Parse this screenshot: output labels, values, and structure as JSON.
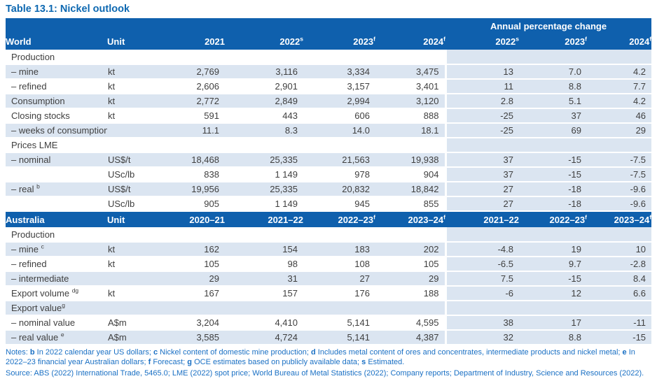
{
  "title": "Table 13.1: Nickel outlook",
  "colors": {
    "header_blue": "#0f60ad",
    "row_shade": "#dbe5f1",
    "title_blue": "#0d68b1",
    "notes_blue": "#1a70c4",
    "body_text": "#3f3f3f"
  },
  "table": {
    "apc_header": "Annual percentage change",
    "world": {
      "header": {
        "label": "World",
        "unit": "Unit",
        "years": [
          {
            "text": "2021",
            "sup": ""
          },
          {
            "text": "2022",
            "sup": "s"
          },
          {
            "text": "2023",
            "sup": "f"
          },
          {
            "text": "2024",
            "sup": "f"
          }
        ],
        "apc_years": [
          {
            "text": "2022",
            "sup": "s"
          },
          {
            "text": "2023",
            "sup": "f"
          },
          {
            "text": "2024",
            "sup": "f"
          }
        ]
      },
      "rows": [
        {
          "label": "Production",
          "sup": "",
          "unit": "",
          "values": [
            "",
            "",
            "",
            ""
          ],
          "apc": [
            "",
            "",
            ""
          ]
        },
        {
          "label": "– mine",
          "sup": "",
          "unit": "kt",
          "values": [
            "2,769",
            "3,116",
            "3,334",
            "3,475"
          ],
          "apc": [
            "13",
            "7.0",
            "4.2"
          ]
        },
        {
          "label": "– refined",
          "sup": "",
          "unit": "kt",
          "values": [
            "2,606",
            "2,901",
            "3,157",
            "3,401"
          ],
          "apc": [
            "11",
            "8.8",
            "7.7"
          ]
        },
        {
          "label": "Consumption",
          "sup": "",
          "unit": "kt",
          "values": [
            "2,772",
            "2,849",
            "2,994",
            "3,120"
          ],
          "apc": [
            "2.8",
            "5.1",
            "4.2"
          ]
        },
        {
          "label": "Closing stocks",
          "sup": "",
          "unit": "kt",
          "values": [
            "591",
            "443",
            "606",
            "888"
          ],
          "apc": [
            "-25",
            "37",
            "46"
          ]
        },
        {
          "label": "– weeks of consumption",
          "sup": "",
          "unit": "",
          "values": [
            "11.1",
            "8.3",
            "14.0",
            "18.1"
          ],
          "apc": [
            "-25",
            "69",
            "29"
          ]
        },
        {
          "label": "Prices LME",
          "sup": "",
          "unit": "",
          "values": [
            "",
            "",
            "",
            ""
          ],
          "apc": [
            "",
            "",
            ""
          ]
        },
        {
          "label": "– nominal",
          "sup": "",
          "unit": "US$/t",
          "values": [
            "18,468",
            "25,335",
            "21,563",
            "19,938"
          ],
          "apc": [
            "37",
            "-15",
            "-7.5"
          ]
        },
        {
          "label": "",
          "sup": "",
          "unit": "USc/lb",
          "values": [
            "838",
            "1 149",
            "978",
            "904"
          ],
          "apc": [
            "37",
            "-15",
            "-7.5"
          ]
        },
        {
          "label": "– real",
          "sup": "b",
          "unit": "US$/t",
          "values": [
            "19,956",
            "25,335",
            "20,832",
            "18,842"
          ],
          "apc": [
            "27",
            "-18",
            "-9.6"
          ]
        },
        {
          "label": "",
          "sup": "",
          "unit": "USc/lb",
          "values": [
            "905",
            "1 149",
            "945",
            "855"
          ],
          "apc": [
            "27",
            "-18",
            "-9.6"
          ]
        }
      ]
    },
    "australia": {
      "header": {
        "label": "Australia",
        "unit": "Unit",
        "years": [
          {
            "text": "2020–21",
            "sup": ""
          },
          {
            "text": "2021–22",
            "sup": ""
          },
          {
            "text": "2022–23",
            "sup": "f"
          },
          {
            "text": "2023–24",
            "sup": "f"
          }
        ],
        "apc_years": [
          {
            "text": "2021–22",
            "sup": ""
          },
          {
            "text": "2022–23",
            "sup": "f"
          },
          {
            "text": "2023–24",
            "sup": "f"
          }
        ]
      },
      "rows": [
        {
          "label": "Production",
          "sup": "",
          "unit": "",
          "values": [
            "",
            "",
            "",
            ""
          ],
          "apc": [
            "",
            "",
            ""
          ]
        },
        {
          "label": "– mine",
          "sup": "c",
          "unit": "kt",
          "values": [
            "162",
            "154",
            "183",
            "202"
          ],
          "apc": [
            "-4.8",
            "19",
            "10"
          ]
        },
        {
          "label": "– refined",
          "sup": "",
          "unit": "kt",
          "values": [
            "105",
            "98",
            "108",
            "105"
          ],
          "apc": [
            "-6.5",
            "9.7",
            "-2.8"
          ]
        },
        {
          "label": "– intermediate",
          "sup": "",
          "unit": "",
          "values": [
            "29",
            "31",
            "27",
            "29"
          ],
          "apc": [
            "7.5",
            "-15",
            "8.4"
          ]
        },
        {
          "label": "Export volume",
          "sup": "dg",
          "unit": "kt",
          "values": [
            "167",
            "157",
            "176",
            "188"
          ],
          "apc": [
            "-6",
            "12",
            "6.6"
          ]
        },
        {
          "label": "Export value",
          "sup": "g",
          "sup_nospace": true,
          "unit": "",
          "values": [
            "",
            "",
            "",
            ""
          ],
          "apc": [
            "",
            "",
            ""
          ]
        },
        {
          "label": "– nominal value",
          "sup": "",
          "unit": "A$m",
          "values": [
            "3,204",
            "4,410",
            "5,141",
            "4,595"
          ],
          "apc": [
            "38",
            "17",
            "-11"
          ]
        },
        {
          "label": "– real value",
          "sup": "e",
          "unit": "A$m",
          "values": [
            "3,585",
            "4,724",
            "5,141",
            "4,387"
          ],
          "apc": [
            "32",
            "8.8",
            "-15"
          ]
        }
      ]
    }
  },
  "notes": {
    "segments": [
      {
        "t": "Notes: ",
        "b": false
      },
      {
        "t": "b",
        "b": true
      },
      {
        "t": " In 2022 calendar year US dollars; ",
        "b": false
      },
      {
        "t": "c",
        "b": true
      },
      {
        "t": " Nickel content of domestic mine production; ",
        "b": false
      },
      {
        "t": "d",
        "b": true
      },
      {
        "t": " Includes metal content of ores and concentrates, intermediate products and nickel metal; ",
        "b": false
      },
      {
        "t": "e",
        "b": true
      },
      {
        "t": " In 2022–23 financial year Australian dollars; ",
        "b": false
      },
      {
        "t": "f",
        "b": true
      },
      {
        "t": " Forecast; ",
        "b": false
      },
      {
        "t": "g",
        "b": true
      },
      {
        "t": " OCE estimates based on publicly available data; ",
        "b": false
      },
      {
        "t": "s",
        "b": true
      },
      {
        "t": " Estimated.",
        "b": false
      }
    ]
  },
  "source": "Source: ABS (2022) International Trade, 5465.0; LME (2022) spot price; World Bureau of Metal Statistics (2022); Company reports; Department of Industry, Science and Resources (2022)."
}
